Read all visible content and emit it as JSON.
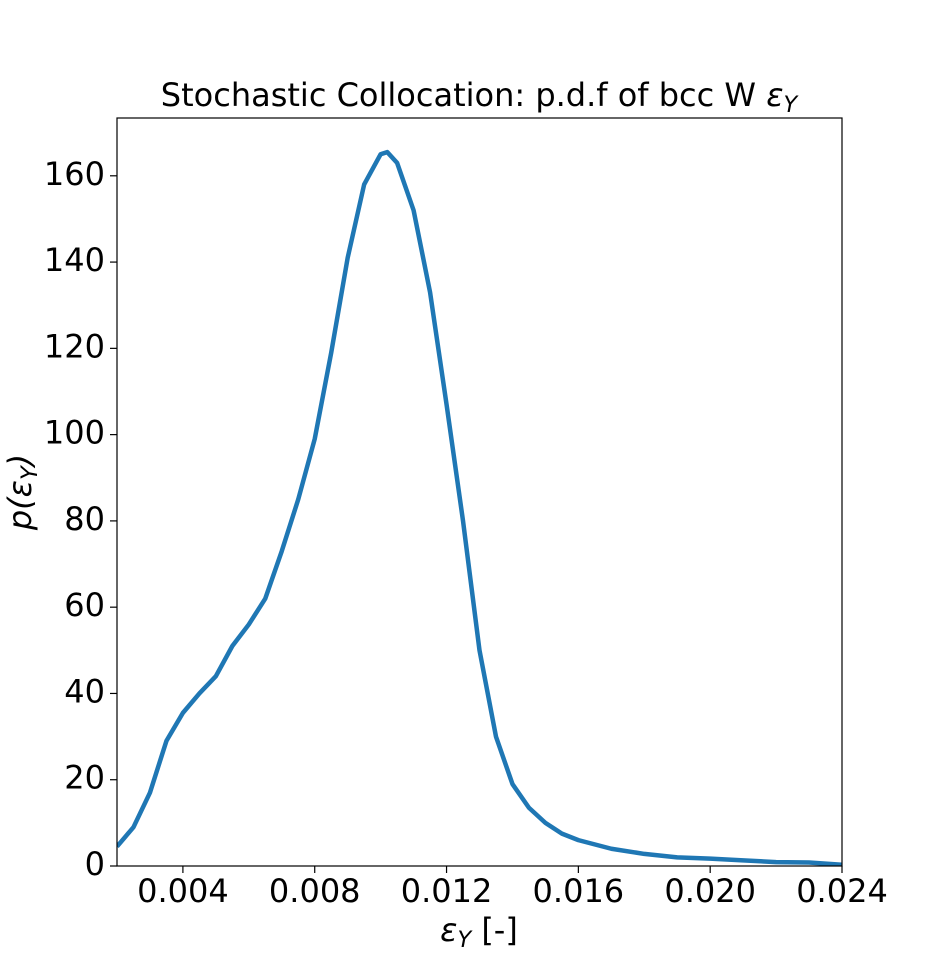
{
  "chart_data": {
    "type": "line",
    "title": "Stochastic Collocation: p.d.f of bcc W εY",
    "x_label": "εY [-]",
    "y_label": "p(εY)",
    "x": [
      0.002,
      0.0025,
      0.003,
      0.0035,
      0.004,
      0.0045,
      0.005,
      0.0055,
      0.006,
      0.0065,
      0.007,
      0.0075,
      0.008,
      0.0085,
      0.009,
      0.0095,
      0.01,
      0.0102,
      0.0105,
      0.011,
      0.0115,
      0.012,
      0.0125,
      0.013,
      0.0135,
      0.014,
      0.0145,
      0.015,
      0.0155,
      0.016,
      0.017,
      0.018,
      0.019,
      0.02,
      0.021,
      0.022,
      0.023,
      0.024
    ],
    "series": [
      {
        "color": "#1f77b4",
        "values": [
          4.5,
          9,
          17,
          29,
          35.5,
          40,
          44,
          51,
          56,
          62,
          73,
          85,
          99,
          119,
          141,
          158,
          165,
          165.5,
          163,
          152,
          133,
          107,
          80,
          50,
          30,
          19,
          13.5,
          10,
          7.5,
          6,
          4,
          2.8,
          2,
          1.7,
          1.3,
          0.9,
          0.8,
          0.3
        ]
      }
    ],
    "xlim": [
      0.002,
      0.024
    ],
    "xticks": [
      0.004,
      0.008,
      0.012,
      0.016,
      {
        "value": 0.02,
        "label": "0.020"
      },
      0.024
    ],
    "ylim": [
      0,
      173.4
    ],
    "yticks": [
      0,
      20,
      40,
      60,
      80,
      100,
      120,
      140,
      160
    ],
    "grid": false
  }
}
